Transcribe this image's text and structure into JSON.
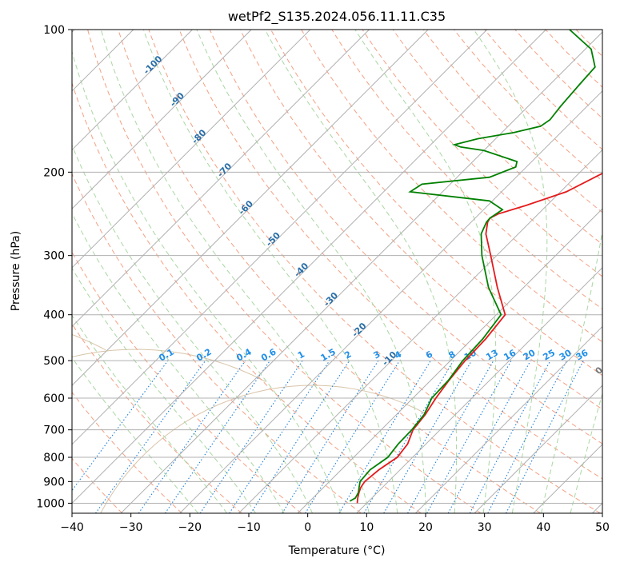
{
  "chart_data": {
    "type": "line",
    "subtype": "skew-t log-p",
    "title": "wetPf2_S135.2024.056.11.11.C35",
    "xlabel": "Temperature (°C)",
    "ylabel": "Pressure (hPa)",
    "xlim": [
      -40,
      50
    ],
    "ylim_pressure": [
      1050,
      100
    ],
    "y_scale": "log",
    "grid": true,
    "x_ticks": [
      "−40",
      "−30",
      "−20",
      "−10",
      "0",
      "10",
      "20",
      "30",
      "40",
      "50"
    ],
    "y_ticks": [
      "100",
      "200",
      "300",
      "400",
      "500",
      "600",
      "700",
      "800",
      "900",
      "1000"
    ],
    "series": [
      {
        "key": "temperature",
        "color": "#e41a1c",
        "points": [
          [
            1000,
            8.4
          ],
          [
            975,
            7.6
          ],
          [
            950,
            6.9
          ],
          [
            925,
            6.3
          ],
          [
            900,
            6.0
          ],
          [
            850,
            6.4
          ],
          [
            800,
            7.4
          ],
          [
            750,
            6.9
          ],
          [
            700,
            5.4
          ],
          [
            650,
            4.9
          ],
          [
            600,
            3.9
          ],
          [
            550,
            3.1
          ],
          [
            500,
            2.5
          ],
          [
            450,
            2.3
          ],
          [
            400,
            1.5
          ],
          [
            350,
            -4.5
          ],
          [
            300,
            -11.0
          ],
          [
            270,
            -15.5
          ],
          [
            255,
            -17.2
          ],
          [
            250,
            -17.5
          ],
          [
            245,
            -16.8
          ],
          [
            235,
            -13.5
          ],
          [
            220,
            -9.0
          ],
          [
            200,
            -5.8
          ],
          [
            190,
            -3.8
          ],
          [
            180,
            -0.2
          ],
          [
            170,
            2.7
          ],
          [
            160,
            5.2
          ],
          [
            140,
            10.8
          ],
          [
            120,
            18.8
          ],
          [
            110,
            25.0
          ],
          [
            100,
            32.0
          ]
        ]
      },
      {
        "key": "dewpoint",
        "color": "#008000",
        "points": [
          [
            990,
            6.8
          ],
          [
            975,
            7.2
          ],
          [
            950,
            6.8
          ],
          [
            925,
            6.0
          ],
          [
            900,
            5.2
          ],
          [
            850,
            4.9
          ],
          [
            800,
            5.8
          ],
          [
            750,
            5.3
          ],
          [
            700,
            5.2
          ],
          [
            650,
            4.7
          ],
          [
            600,
            3.2
          ],
          [
            550,
            3.0
          ],
          [
            500,
            2.1
          ],
          [
            450,
            1.8
          ],
          [
            400,
            0.8
          ],
          [
            350,
            -6.0
          ],
          [
            300,
            -12.5
          ],
          [
            270,
            -16.3
          ],
          [
            255,
            -17.4
          ],
          [
            250,
            -17.5
          ],
          [
            240,
            -16.8
          ],
          [
            230,
            -20.5
          ],
          [
            220,
            -35.5
          ],
          [
            212,
            -34.8
          ],
          [
            205,
            -24.5
          ],
          [
            195,
            -21.8
          ],
          [
            190,
            -22.5
          ],
          [
            180,
            -30.0
          ],
          [
            177,
            -34.5
          ],
          [
            175,
            -36.0
          ],
          [
            170,
            -33.0
          ],
          [
            165,
            -28.0
          ],
          [
            160,
            -24.5
          ],
          [
            155,
            -24.0
          ],
          [
            145,
            -24.5
          ],
          [
            130,
            -25.0
          ],
          [
            120,
            -25.3
          ],
          [
            110,
            -29.0
          ],
          [
            100,
            -36.0
          ]
        ]
      }
    ],
    "dry_adiabat_labels": [
      "-100",
      "-90",
      "-80",
      "-70",
      "-60",
      "-50",
      "-40",
      "-30",
      "-20",
      "-10"
    ],
    "moist_adiabat_labels": [
      "0",
      "10",
      "20",
      "30",
      "40"
    ],
    "mixing_ratio_labels": [
      "0.1",
      "0.2",
      "0.4",
      "0.6",
      "1",
      "1.5",
      "2",
      "3",
      "4",
      "6",
      "8",
      "10",
      "13",
      "16",
      "20",
      "25",
      "30",
      "36"
    ],
    "colors": {
      "isobar": "#b0b0b0",
      "isotherm": "#b0b0b0",
      "dry_adiabat": "#f5a083",
      "moist_adiabat": "#a9d7a2",
      "mixing_ratio": "#1f7fd8",
      "dry_label": "#2a6fa8",
      "moist_label": "#d62728",
      "mixing_label": "#1f8fe8",
      "tan_curve": "#d8c4a8"
    }
  }
}
